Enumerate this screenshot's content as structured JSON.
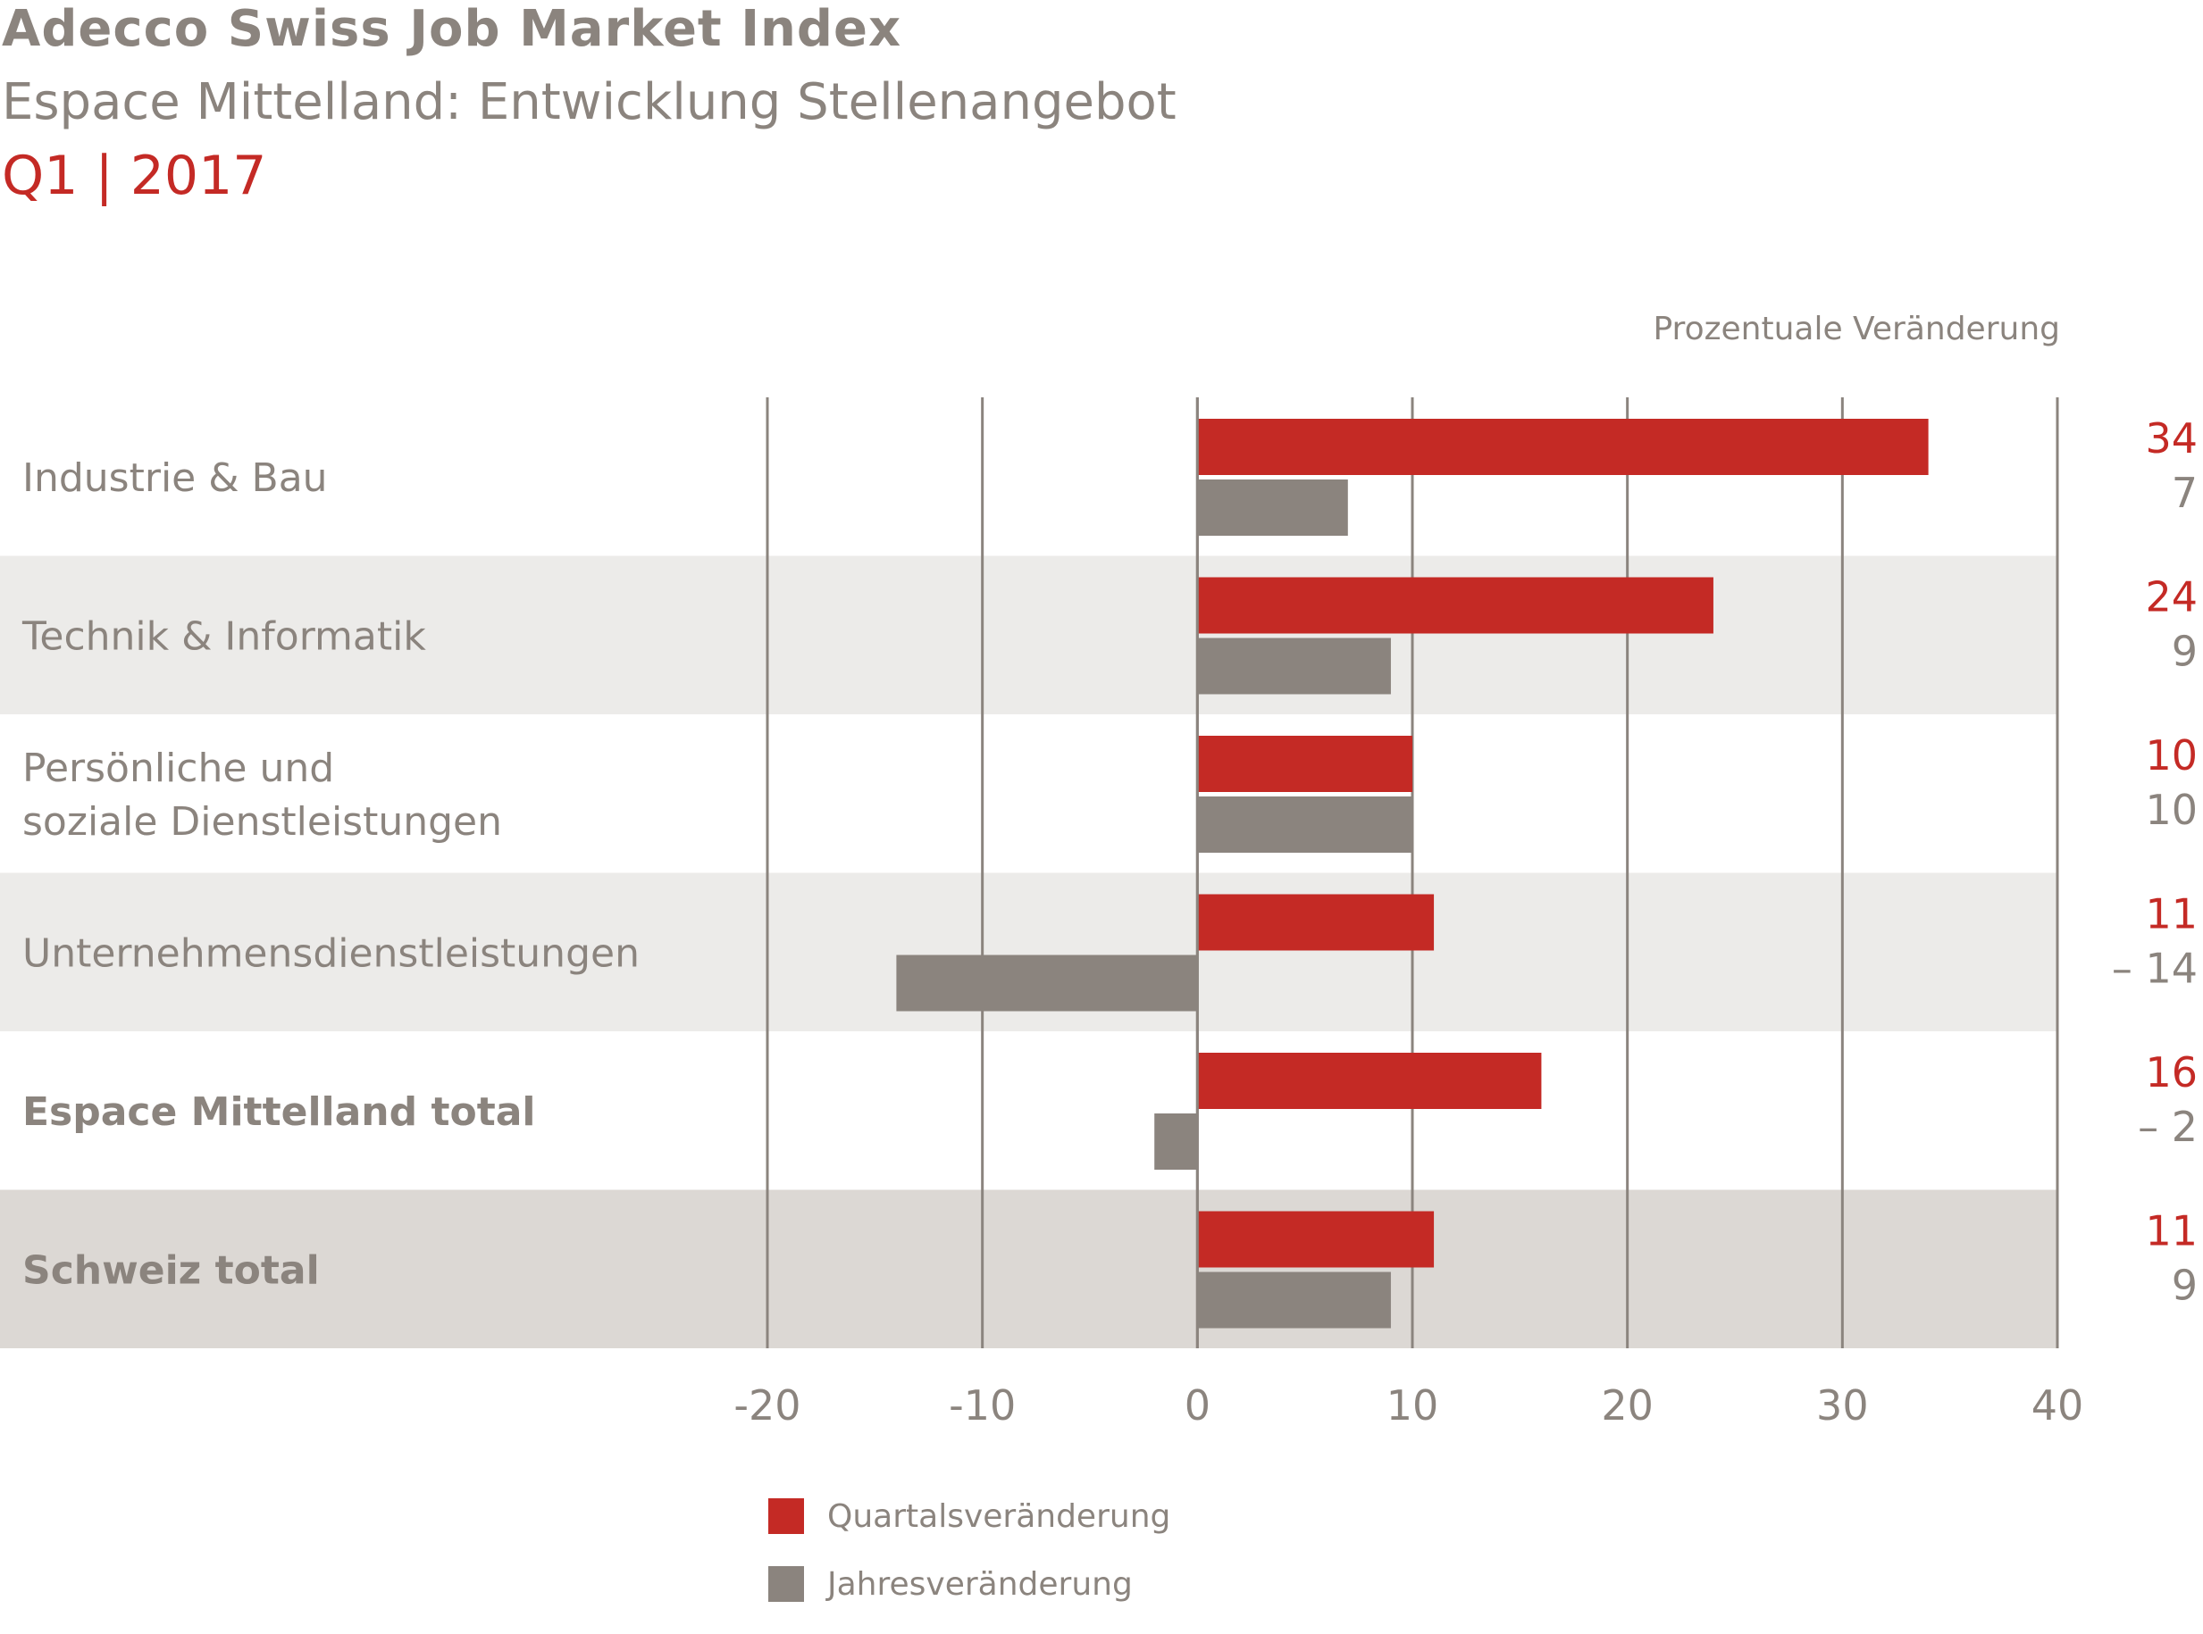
{
  "title": "Adecco Swiss Job Market Index",
  "subtitle": "Espace Mittelland: Entwicklung Stellenangebot",
  "period": "Q1 | 2017",
  "unit_label": "Prozentuale Veränderung",
  "colors": {
    "quarter": "#c42a25",
    "year": "#8b847e",
    "band_light": "#ecebe9",
    "band_dark": "#dcd8d4",
    "grid": "#8b847e"
  },
  "chart_data": {
    "type": "bar",
    "orientation": "horizontal",
    "categories": [
      "Industrie & Bau",
      "Technik & Informatik",
      "Persönliche und soziale Dienstleistungen",
      "Unternehmensdienstleistungen",
      "Espace Mittelland total",
      "Schweiz total"
    ],
    "category_lines": [
      [
        "Industrie & Bau"
      ],
      [
        "Technik & Informatik"
      ],
      [
        "Persönliche und",
        "soziale Dienstleistungen"
      ],
      [
        "Unternehmensdienstleistungen"
      ],
      [
        "Espace Mittelland total"
      ],
      [
        "Schweiz total"
      ]
    ],
    "bold_categories": [
      "Espace Mittelland total",
      "Schweiz total"
    ],
    "series": [
      {
        "name": "Quartalsveränderung",
        "values": [
          34,
          24,
          10,
          11,
          16,
          11
        ]
      },
      {
        "name": "Jahresveränderung",
        "values": [
          7,
          9,
          10,
          -14,
          -2,
          9
        ]
      }
    ],
    "value_labels": {
      "Quartalsveränderung": [
        "34",
        "24",
        "10",
        "11",
        "16",
        "11"
      ],
      "Jahresveränderung": [
        "7",
        "9",
        "10",
        "– 14",
        "– 2",
        "9"
      ]
    },
    "xlim": [
      -20,
      40
    ],
    "xticks": [
      -20,
      -10,
      0,
      10,
      20,
      30,
      40
    ],
    "xtick_labels": [
      "-20",
      "-10",
      "0",
      "10",
      "20",
      "30",
      "40"
    ],
    "grid": true,
    "legend_position": "bottom-left"
  }
}
